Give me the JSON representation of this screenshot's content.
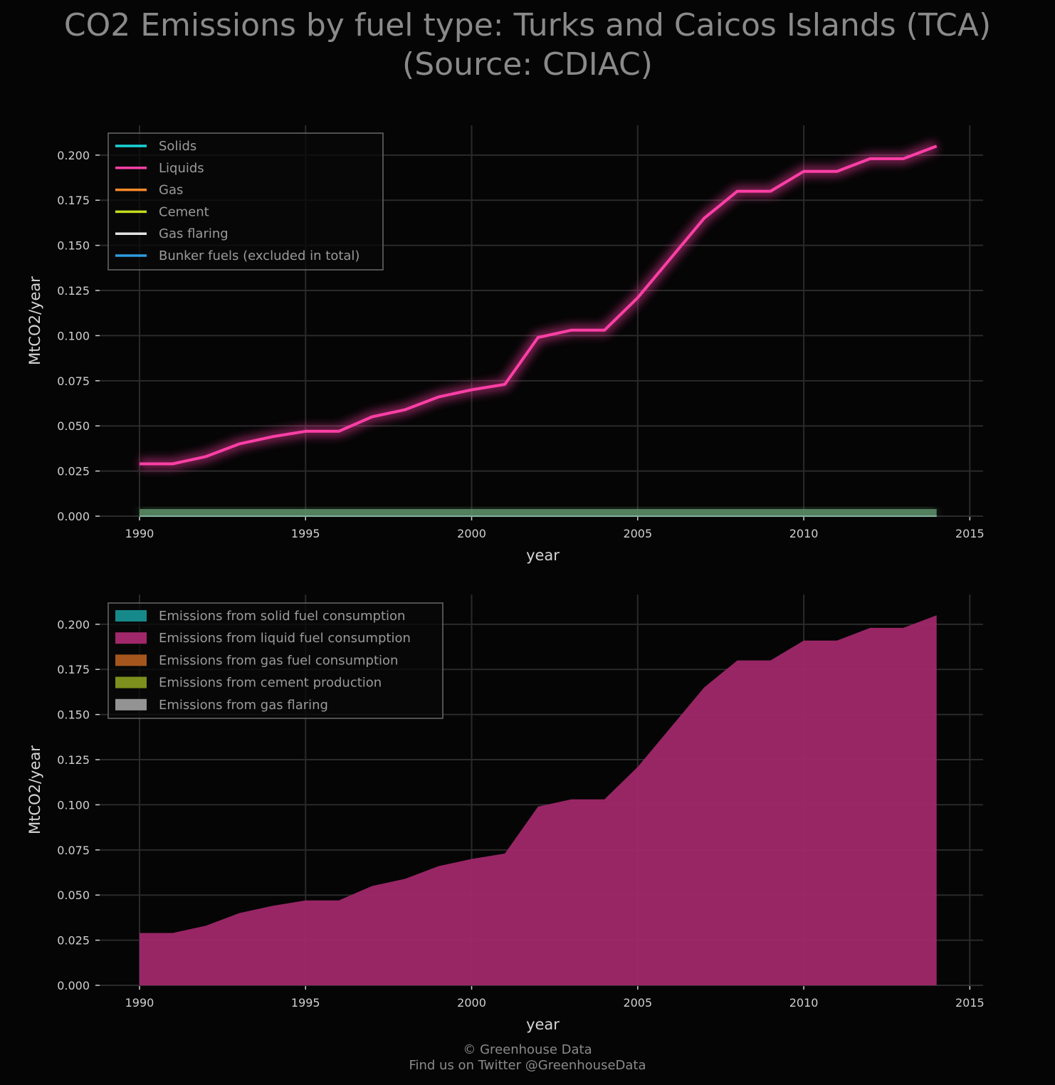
{
  "title": {
    "line1": "CO2 Emissions by fuel type: Turks and Caicos Islands (TCA)",
    "line2": "(Source: CDIAC)"
  },
  "footer": {
    "line1": "© Greenhouse Data",
    "line2": "Find us on Twitter @GreenhouseData"
  },
  "colors": {
    "background": "#050505",
    "grid": "#2a2a2a",
    "liquids_line": "#ff3fa6",
    "liquids_area": "#a0286a"
  },
  "chart_data": [
    {
      "type": "line",
      "xlabel": "year",
      "ylabel": "MtCO2/year",
      "xlim": [
        1988.8,
        2015.4
      ],
      "ylim": [
        0,
        0.2165
      ],
      "xticks": [
        "1990",
        "1995",
        "2000",
        "2005",
        "2010",
        "2015"
      ],
      "yticks": [
        "0.000",
        "0.025",
        "0.050",
        "0.075",
        "0.100",
        "0.125",
        "0.150",
        "0.175",
        "0.200"
      ],
      "grid": true,
      "legend_position": "top-left",
      "x": [
        1990,
        1991,
        1992,
        1993,
        1994,
        1995,
        1996,
        1997,
        1998,
        1999,
        2000,
        2001,
        2002,
        2003,
        2004,
        2005,
        2006,
        2007,
        2008,
        2009,
        2010,
        2011,
        2012,
        2013,
        2014
      ],
      "series": [
        {
          "name": "Solids",
          "color": "#19d3d8",
          "values": [
            0,
            0,
            0,
            0,
            0,
            0,
            0,
            0,
            0,
            0,
            0,
            0,
            0,
            0,
            0,
            0,
            0,
            0,
            0,
            0,
            0,
            0,
            0,
            0,
            0
          ]
        },
        {
          "name": "Liquids",
          "color": "#ff3fa6",
          "values": [
            0.029,
            0.029,
            0.033,
            0.04,
            0.044,
            0.047,
            0.047,
            0.055,
            0.059,
            0.066,
            0.07,
            0.073,
            0.099,
            0.103,
            0.103,
            0.121,
            0.143,
            0.165,
            0.18,
            0.18,
            0.191,
            0.191,
            0.198,
            0.198,
            0.205
          ]
        },
        {
          "name": "Gas",
          "color": "#ff8a2a",
          "values": [
            0,
            0,
            0,
            0,
            0,
            0,
            0,
            0,
            0,
            0,
            0,
            0,
            0,
            0,
            0,
            0,
            0,
            0,
            0,
            0,
            0,
            0,
            0,
            0,
            0
          ]
        },
        {
          "name": "Cement",
          "color": "#c5dc1e",
          "values": [
            0,
            0,
            0,
            0,
            0,
            0,
            0,
            0,
            0,
            0,
            0,
            0,
            0,
            0,
            0,
            0,
            0,
            0,
            0,
            0,
            0,
            0,
            0,
            0,
            0
          ]
        },
        {
          "name": "Gas flaring",
          "color": "#e4e4e4",
          "values": [
            0,
            0,
            0,
            0,
            0,
            0,
            0,
            0,
            0,
            0,
            0,
            0,
            0,
            0,
            0,
            0,
            0,
            0,
            0,
            0,
            0,
            0,
            0,
            0,
            0
          ]
        },
        {
          "name": "Bunker fuels (excluded in total)",
          "color": "#2d9ce0",
          "values": [
            0,
            0,
            0,
            0,
            0,
            0,
            0,
            0,
            0,
            0,
            0,
            0,
            0,
            0,
            0,
            0,
            0,
            0,
            0,
            0,
            0,
            0,
            0,
            0,
            0
          ]
        }
      ]
    },
    {
      "type": "area",
      "xlabel": "year",
      "ylabel": "MtCO2/year",
      "xlim": [
        1988.8,
        2015.4
      ],
      "ylim": [
        0,
        0.2165
      ],
      "xticks": [
        "1990",
        "1995",
        "2000",
        "2005",
        "2010",
        "2015"
      ],
      "yticks": [
        "0.000",
        "0.025",
        "0.050",
        "0.075",
        "0.100",
        "0.125",
        "0.150",
        "0.175",
        "0.200"
      ],
      "grid": true,
      "legend_position": "top-left",
      "stacked": true,
      "x": [
        1990,
        1991,
        1992,
        1993,
        1994,
        1995,
        1996,
        1997,
        1998,
        1999,
        2000,
        2001,
        2002,
        2003,
        2004,
        2005,
        2006,
        2007,
        2008,
        2009,
        2010,
        2011,
        2012,
        2013,
        2014
      ],
      "series": [
        {
          "name": "Emissions from solid fuel consumption",
          "color": "#16898a",
          "values": [
            0,
            0,
            0,
            0,
            0,
            0,
            0,
            0,
            0,
            0,
            0,
            0,
            0,
            0,
            0,
            0,
            0,
            0,
            0,
            0,
            0,
            0,
            0,
            0,
            0
          ]
        },
        {
          "name": "Emissions from liquid fuel consumption",
          "color": "#a0286a",
          "values": [
            0.029,
            0.029,
            0.033,
            0.04,
            0.044,
            0.047,
            0.047,
            0.055,
            0.059,
            0.066,
            0.07,
            0.073,
            0.099,
            0.103,
            0.103,
            0.121,
            0.143,
            0.165,
            0.18,
            0.18,
            0.191,
            0.191,
            0.198,
            0.198,
            0.205
          ]
        },
        {
          "name": "Emissions from gas fuel consumption",
          "color": "#a5561d",
          "values": [
            0,
            0,
            0,
            0,
            0,
            0,
            0,
            0,
            0,
            0,
            0,
            0,
            0,
            0,
            0,
            0,
            0,
            0,
            0,
            0,
            0,
            0,
            0,
            0,
            0
          ]
        },
        {
          "name": "Emissions from cement production",
          "color": "#7d8f1c",
          "values": [
            0,
            0,
            0,
            0,
            0,
            0,
            0,
            0,
            0,
            0,
            0,
            0,
            0,
            0,
            0,
            0,
            0,
            0,
            0,
            0,
            0,
            0,
            0,
            0,
            0
          ]
        },
        {
          "name": "Emissions from gas flaring",
          "color": "#939393",
          "values": [
            0,
            0,
            0,
            0,
            0,
            0,
            0,
            0,
            0,
            0,
            0,
            0,
            0,
            0,
            0,
            0,
            0,
            0,
            0,
            0,
            0,
            0,
            0,
            0,
            0
          ]
        }
      ]
    }
  ]
}
